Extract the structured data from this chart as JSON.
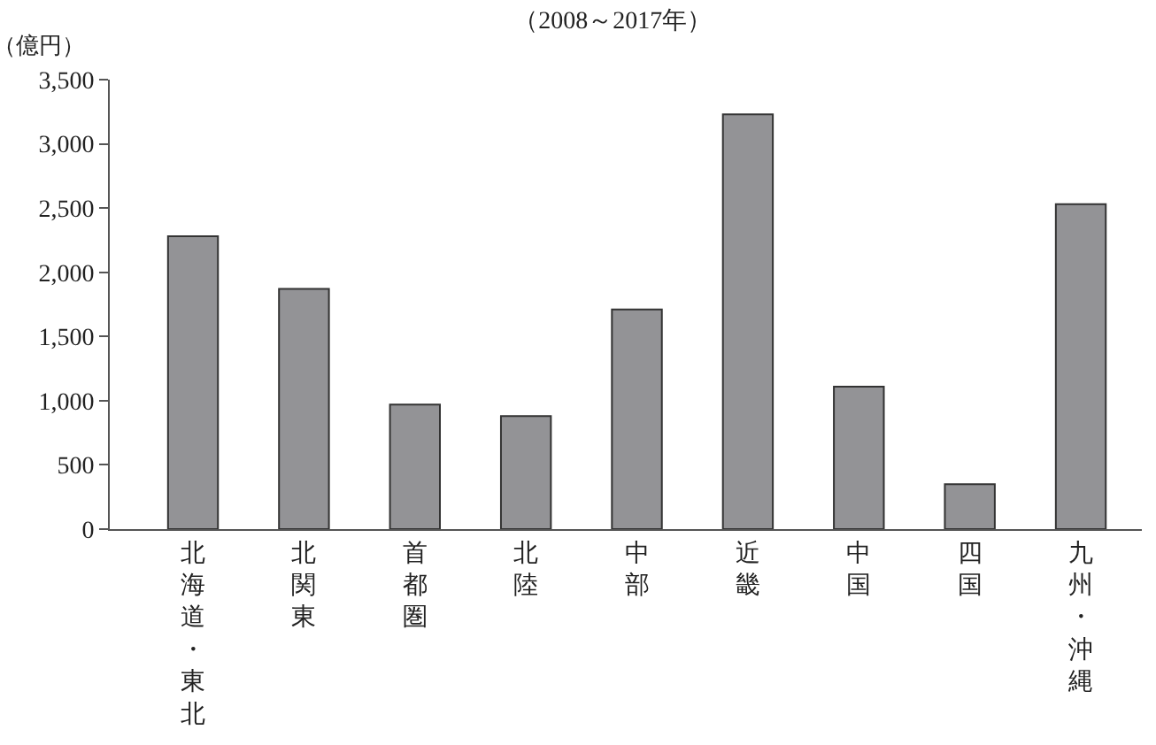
{
  "chart_data": {
    "type": "bar",
    "title": "（2008～2017年）",
    "ylabel": "（億円）",
    "categories": [
      "北海道・東北",
      "北関東",
      "首都圏",
      "北陸",
      "中部",
      "近畿",
      "中国",
      "四国",
      "九州・沖縄"
    ],
    "values": [
      2280,
      1870,
      970,
      880,
      1710,
      3230,
      1110,
      350,
      2530
    ],
    "color": "#939396",
    "ylim": [
      0,
      3500
    ],
    "yticks": [
      {
        "value": 0,
        "label": "0"
      },
      {
        "value": 500,
        "label": "500"
      },
      {
        "value": 1000,
        "label": "1,000"
      },
      {
        "value": 1500,
        "label": "1,500"
      },
      {
        "value": 2000,
        "label": "2,000"
      },
      {
        "value": 2500,
        "label": "2,500"
      },
      {
        "value": 3000,
        "label": "3,000"
      },
      {
        "value": 3500,
        "label": "3,500"
      }
    ],
    "legend": false
  }
}
